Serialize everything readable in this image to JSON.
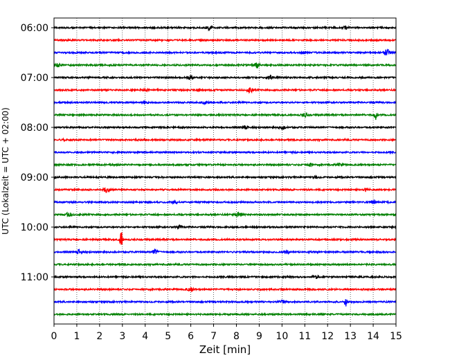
{
  "chart_data": {
    "type": "line",
    "title": "",
    "xlabel": "Zeit  [min]",
    "ylabel": "UTC (Lokalzeit = UTC + 02:00)",
    "xlim": [
      0,
      15
    ],
    "xticks": [
      0,
      1,
      2,
      3,
      4,
      5,
      6,
      7,
      8,
      9,
      10,
      11,
      12,
      13,
      14,
      15
    ],
    "xtick_labels": [
      "0",
      "1",
      "2",
      "3",
      "4",
      "5",
      "6",
      "7",
      "8",
      "9",
      "10",
      "11",
      "12",
      "13",
      "14",
      "15"
    ],
    "yticks": [
      {
        "label": "06:00",
        "trace_index": 0
      },
      {
        "label": "07:00",
        "trace_index": 4
      },
      {
        "label": "08:00",
        "trace_index": 8
      },
      {
        "label": "09:00",
        "trace_index": 12
      },
      {
        "label": "10:00",
        "trace_index": 16
      },
      {
        "label": "11:00",
        "trace_index": 20
      }
    ],
    "grid": "vertical dotted",
    "colors": [
      "#000000",
      "#ff0000",
      "#0000ff",
      "#008000"
    ],
    "traces": [
      {
        "start": "06:00",
        "color": "#000000",
        "events": [
          {
            "t": 6.8,
            "amp": 0.35
          },
          {
            "t": 12.8,
            "amp": 0.25
          }
        ]
      },
      {
        "start": "06:15",
        "color": "#ff0000",
        "events": []
      },
      {
        "start": "06:30",
        "color": "#0000ff",
        "events": [
          {
            "t": 11.0,
            "amp": 0.25
          },
          {
            "t": 14.6,
            "amp": 0.7
          }
        ]
      },
      {
        "start": "06:45",
        "color": "#008000",
        "events": [
          {
            "t": 0.15,
            "amp": 0.4
          },
          {
            "t": 8.9,
            "amp": 0.6
          }
        ]
      },
      {
        "start": "07:00",
        "color": "#000000",
        "events": [
          {
            "t": 6.0,
            "amp": 0.5
          },
          {
            "t": 9.5,
            "amp": 0.5
          }
        ]
      },
      {
        "start": "07:15",
        "color": "#ff0000",
        "events": [
          {
            "t": 4.0,
            "amp": 0.3
          },
          {
            "t": 8.6,
            "amp": 0.5
          }
        ]
      },
      {
        "start": "07:30",
        "color": "#0000ff",
        "events": [
          {
            "t": 4.0,
            "amp": 0.3
          },
          {
            "t": 6.6,
            "amp": 0.3
          }
        ]
      },
      {
        "start": "07:45",
        "color": "#008000",
        "events": [
          {
            "t": 11.0,
            "amp": 0.3
          },
          {
            "t": 14.1,
            "amp": 1.0
          }
        ]
      },
      {
        "start": "08:00",
        "color": "#000000",
        "events": [
          {
            "t": 8.4,
            "amp": 0.35
          },
          {
            "t": 10.0,
            "amp": 0.45
          }
        ]
      },
      {
        "start": "08:15",
        "color": "#ff0000",
        "events": [
          {
            "t": 0.5,
            "amp": 0.2
          }
        ]
      },
      {
        "start": "08:30",
        "color": "#0000ff",
        "events": []
      },
      {
        "start": "08:45",
        "color": "#008000",
        "events": [
          {
            "t": 11.2,
            "amp": 0.3
          },
          {
            "t": 12.5,
            "amp": 0.3
          }
        ]
      },
      {
        "start": "09:00",
        "color": "#000000",
        "events": [
          {
            "t": 0.0,
            "amp": 0.3
          },
          {
            "t": 11.5,
            "amp": 0.3
          }
        ]
      },
      {
        "start": "09:15",
        "color": "#ff0000",
        "events": [
          {
            "t": 2.3,
            "amp": 0.55
          },
          {
            "t": 13.7,
            "amp": 0.35
          }
        ]
      },
      {
        "start": "09:30",
        "color": "#0000ff",
        "events": [
          {
            "t": 5.3,
            "amp": 0.35
          },
          {
            "t": 14.0,
            "amp": 0.3
          }
        ]
      },
      {
        "start": "09:45",
        "color": "#008000",
        "events": [
          {
            "t": 0.65,
            "amp": 0.45
          },
          {
            "t": 8.1,
            "amp": 0.55
          }
        ]
      },
      {
        "start": "10:00",
        "color": "#000000",
        "events": [
          {
            "t": 5.5,
            "amp": 0.3
          }
        ]
      },
      {
        "start": "10:15",
        "color": "#ff0000",
        "events": [
          {
            "t": 2.95,
            "amp": 1.8
          }
        ]
      },
      {
        "start": "10:30",
        "color": "#0000ff",
        "events": [
          {
            "t": 1.1,
            "amp": 0.5
          },
          {
            "t": 4.45,
            "amp": 0.6
          },
          {
            "t": 10.2,
            "amp": 0.4
          }
        ]
      },
      {
        "start": "10:45",
        "color": "#008000",
        "events": []
      },
      {
        "start": "11:00",
        "color": "#000000",
        "events": [
          {
            "t": 11.5,
            "amp": 0.25
          }
        ]
      },
      {
        "start": "11:15",
        "color": "#ff0000",
        "events": [
          {
            "t": 6.0,
            "amp": 0.4
          }
        ]
      },
      {
        "start": "11:30",
        "color": "#0000ff",
        "events": [
          {
            "t": 10.0,
            "amp": 0.3
          },
          {
            "t": 12.8,
            "amp": 1.2
          }
        ]
      },
      {
        "start": "11:45",
        "color": "#008000",
        "events": []
      }
    ]
  }
}
